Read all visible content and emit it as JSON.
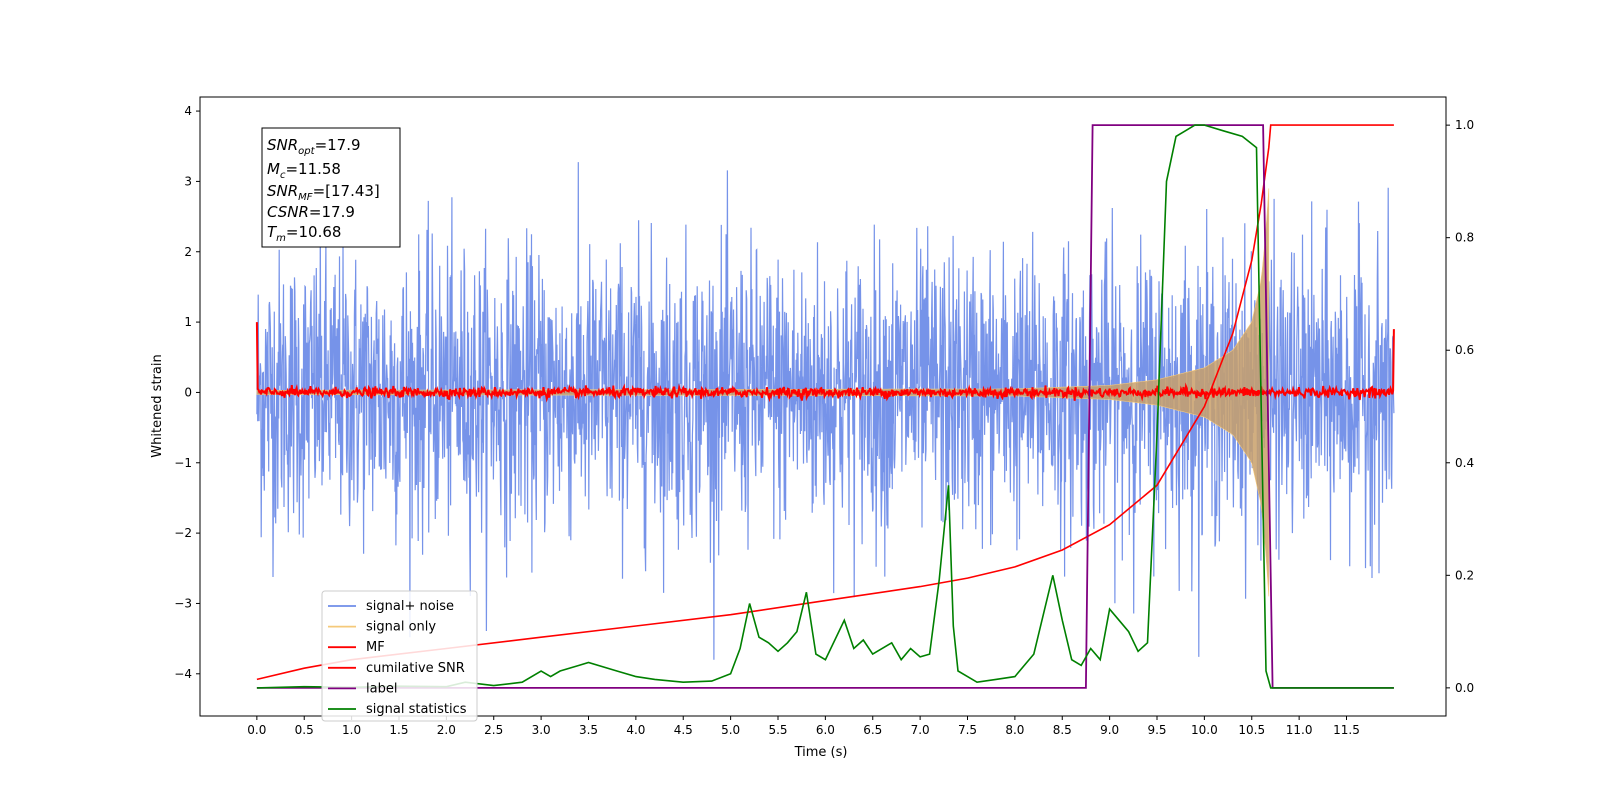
{
  "chart_data": {
    "type": "line",
    "xlabel": "Time (s)",
    "ylabel": "Whitened strain",
    "xlim": [
      -0.6,
      12.55
    ],
    "ylim_left": [
      -4.6,
      4.2
    ],
    "ylim_right": [
      -0.05,
      1.05
    ],
    "x_ticks": [
      "0.0",
      "0.5",
      "1.0",
      "1.5",
      "2.0",
      "2.5",
      "3.0",
      "3.5",
      "4.0",
      "4.5",
      "5.0",
      "5.5",
      "6.0",
      "6.5",
      "7.0",
      "7.5",
      "8.0",
      "8.5",
      "9.0",
      "9.5",
      "10.0",
      "10.5",
      "11.0",
      "11.5"
    ],
    "y_ticks_left": [
      "−4",
      "−3",
      "−2",
      "−1",
      "0",
      "1",
      "2",
      "3",
      "4"
    ],
    "y_ticks_right": [
      "0.0",
      "0.2",
      "0.4",
      "0.6",
      "0.8",
      "1.0"
    ],
    "grid": false,
    "legend_position": "lower-left",
    "annotation": {
      "snr_opt": "17.9",
      "mc": "11.58",
      "snr_mf": "[17.43]",
      "csnr": "17.9",
      "tm": "10.68"
    },
    "series": [
      {
        "name": "signal+ noise",
        "color": "#6f8de8",
        "axis": "left",
        "description_values": {
          "std": 1.0,
          "t_start": 0.0,
          "t_end": 12.0
        }
      },
      {
        "name": "signal only",
        "color": "#f5c97a",
        "axis": "left",
        "envelope": {
          "t": [
            0,
            8.0,
            9.0,
            9.5,
            10.0,
            10.3,
            10.5,
            10.6,
            10.65,
            10.68
          ],
          "amp": [
            0.03,
            0.05,
            0.1,
            0.18,
            0.35,
            0.6,
            1.0,
            1.6,
            2.3,
            2.9
          ]
        }
      },
      {
        "name": "MF",
        "color": "#ff0000",
        "axis": "left",
        "values": {
          "t_start": 0.0,
          "t_end": 12.0,
          "level": 0.0,
          "edge_value": 1.0
        }
      },
      {
        "name": "cumilative SNR",
        "color": "#ff0000",
        "axis": "right",
        "t": [
          0.0,
          0.5,
          1.0,
          2.0,
          3.0,
          4.0,
          5.0,
          6.0,
          7.0,
          7.5,
          8.0,
          8.5,
          9.0,
          9.5,
          10.0,
          10.3,
          10.5,
          10.6,
          10.68,
          10.7,
          12.0
        ],
        "v": [
          0.015,
          0.035,
          0.05,
          0.07,
          0.09,
          0.11,
          0.13,
          0.155,
          0.18,
          0.195,
          0.215,
          0.245,
          0.29,
          0.36,
          0.5,
          0.63,
          0.76,
          0.86,
          0.96,
          1.0,
          1.0
        ]
      },
      {
        "name": "label",
        "color": "#800080",
        "axis": "right",
        "t": [
          0.0,
          8.75,
          8.82,
          10.62,
          10.72,
          12.0
        ],
        "v": [
          0.0,
          0.0,
          1.0,
          1.0,
          0.0,
          0.0
        ]
      },
      {
        "name": "signal statistics",
        "color": "#008000",
        "axis": "right",
        "t": [
          0.0,
          0.5,
          1.0,
          1.5,
          2.0,
          2.2,
          2.5,
          2.8,
          3.0,
          3.1,
          3.2,
          3.4,
          3.5,
          3.8,
          4.0,
          4.2,
          4.5,
          4.8,
          5.0,
          5.1,
          5.2,
          5.3,
          5.4,
          5.5,
          5.6,
          5.7,
          5.8,
          5.9,
          6.0,
          6.2,
          6.3,
          6.4,
          6.5,
          6.7,
          6.8,
          6.9,
          7.0,
          7.1,
          7.2,
          7.3,
          7.35,
          7.4,
          7.5,
          7.6,
          7.8,
          8.0,
          8.2,
          8.4,
          8.5,
          8.6,
          8.7,
          8.8,
          8.9,
          9.0,
          9.1,
          9.2,
          9.3,
          9.4,
          9.5,
          9.6,
          9.7,
          9.8,
          9.9,
          10.0,
          10.2,
          10.4,
          10.55,
          10.6,
          10.65,
          10.7,
          12.0
        ],
        "v": [
          0.0,
          0.002,
          0.001,
          0.003,
          0.002,
          0.01,
          0.004,
          0.01,
          0.03,
          0.02,
          0.03,
          0.04,
          0.045,
          0.03,
          0.02,
          0.015,
          0.01,
          0.012,
          0.025,
          0.07,
          0.15,
          0.09,
          0.08,
          0.065,
          0.08,
          0.1,
          0.17,
          0.06,
          0.05,
          0.12,
          0.07,
          0.085,
          0.06,
          0.08,
          0.05,
          0.07,
          0.055,
          0.06,
          0.19,
          0.36,
          0.11,
          0.03,
          0.02,
          0.01,
          0.015,
          0.02,
          0.06,
          0.2,
          0.12,
          0.05,
          0.04,
          0.07,
          0.05,
          0.14,
          0.12,
          0.1,
          0.065,
          0.08,
          0.45,
          0.9,
          0.98,
          0.99,
          1.0,
          1.0,
          0.99,
          0.98,
          0.96,
          0.5,
          0.03,
          0.0,
          0.0
        ]
      }
    ]
  },
  "legend": {
    "items": [
      {
        "label": "signal+ noise",
        "color": "#6f8de8"
      },
      {
        "label": "signal only",
        "color": "#f5c97a"
      },
      {
        "label": "MF",
        "color": "#ff0000"
      },
      {
        "label": "cumilative SNR",
        "color": "#ff0000"
      },
      {
        "label": "label",
        "color": "#800080"
      },
      {
        "label": "signal statistics",
        "color": "#008000"
      }
    ]
  }
}
